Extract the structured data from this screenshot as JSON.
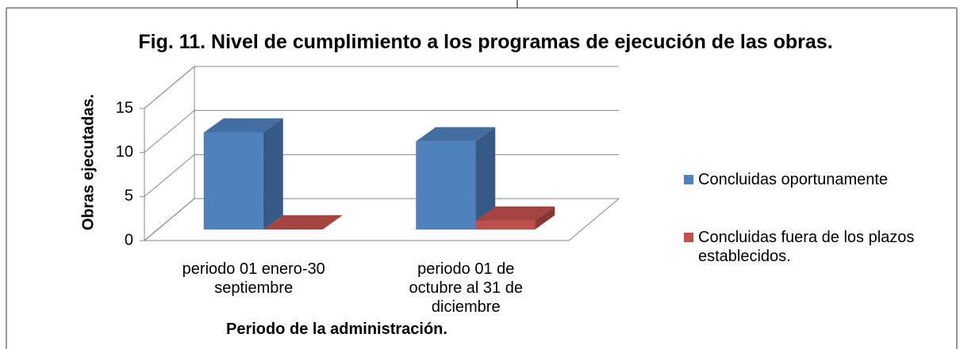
{
  "chart_data": {
    "type": "bar3d",
    "title": "Fig. 11. Nivel de cumplimiento a los programas de ejecución de las obras.",
    "y_label": "Obras ejecutadas.",
    "x_label": "Periodo de la administración.",
    "categories": [
      "periodo 01 enero-30 septiembre",
      "periodo 01 de octubre al 31 de diciembre"
    ],
    "series": [
      {
        "name": "Concluidas oportunamente",
        "color": "#4f81bd",
        "values": [
          11,
          10
        ]
      },
      {
        "name": "Concluidas fuera de los plazos establecidos.",
        "color": "#c0504d",
        "values": [
          0,
          1
        ]
      }
    ],
    "ylim": [
      0,
      15
    ],
    "yticks": [
      0,
      5,
      10,
      15
    ],
    "grid": true,
    "legend": "right"
  }
}
